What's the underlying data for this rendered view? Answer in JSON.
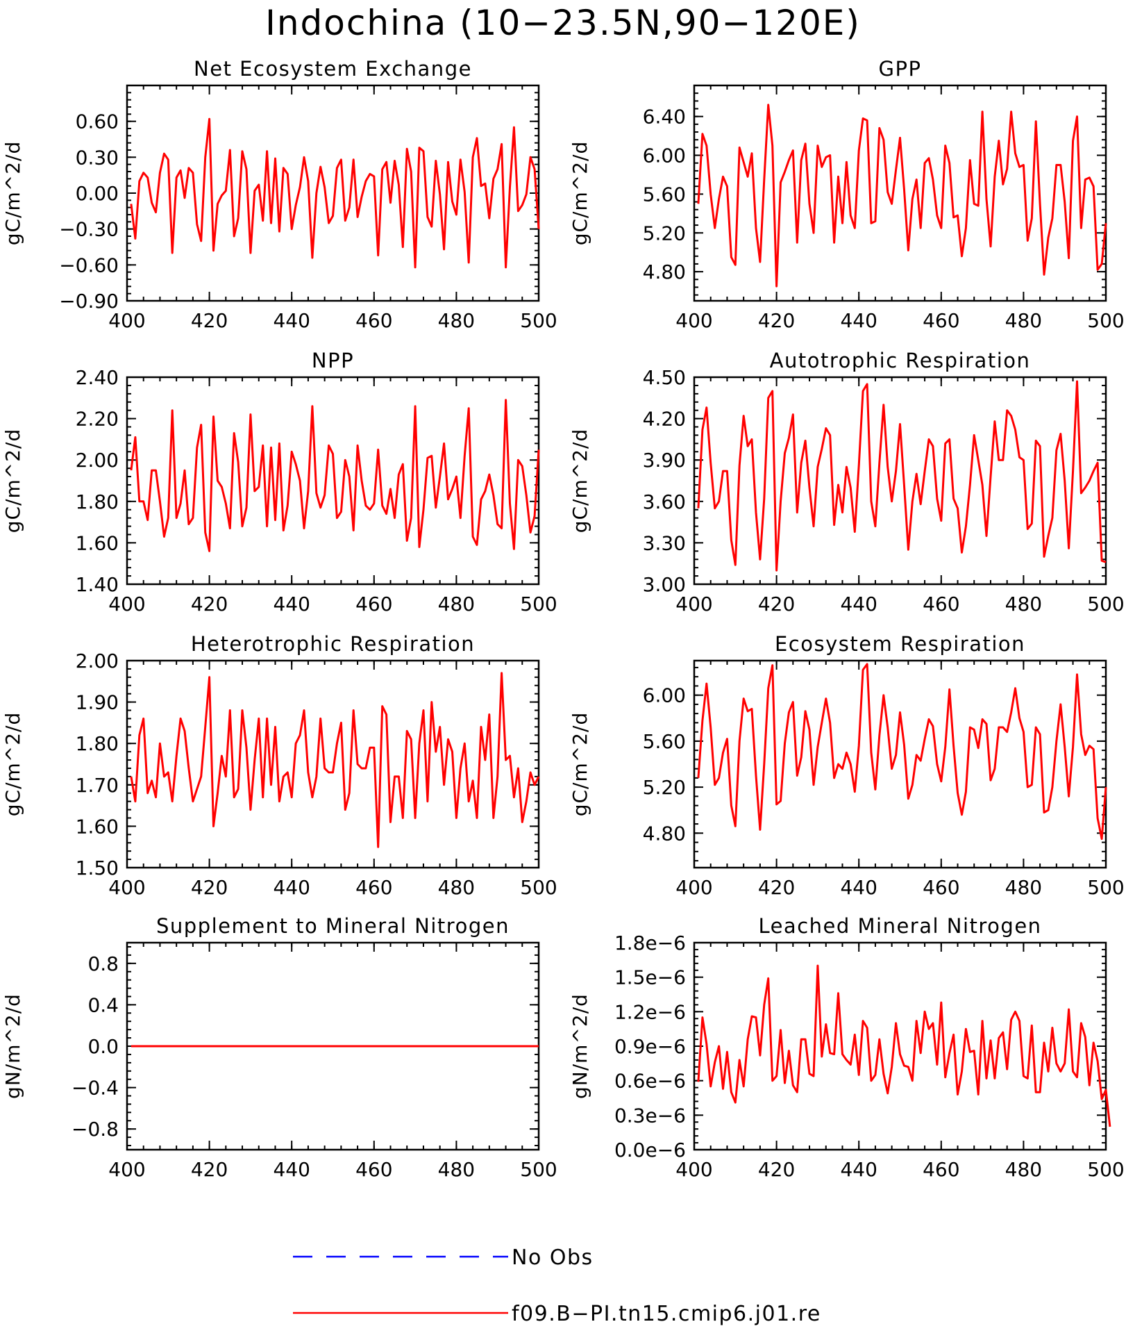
{
  "figure_title": "Indochina (10−23.5N,90−120E)",
  "legend": [
    {
      "label": "No Obs",
      "color": "#0000ff",
      "dash": true
    },
    {
      "label": "f09.B−PI.tn15.cmip6.j01.re",
      "color": "#ff0000",
      "dash": false
    }
  ],
  "series_color": "#ff0000",
  "chart_data": [
    {
      "type": "line",
      "title": "Net Ecosystem Exchange",
      "ylabel": "gC/m^2/d",
      "xlim": [
        400,
        500
      ],
      "xticks": [
        400,
        420,
        440,
        460,
        480,
        500
      ],
      "xtick_labels": [
        "400",
        "420",
        "440",
        "460",
        "480",
        "500"
      ],
      "ylim": [
        -0.9,
        0.9
      ],
      "yticks": [
        -0.9,
        -0.6,
        -0.3,
        0.0,
        0.3,
        0.6
      ],
      "ytick_labels": [
        "−0.90",
        "−0.60",
        "−0.30",
        "0.00",
        "0.30",
        "0.60"
      ],
      "series": [
        {
          "name": "f09.B−PI.tn15.cmip6.j01.re",
          "x_start": 401,
          "x_step": 1,
          "values": [
            -0.09,
            -0.38,
            0.1,
            0.17,
            0.13,
            -0.08,
            -0.16,
            0.17,
            0.33,
            0.28,
            -0.5,
            0.13,
            0.19,
            -0.04,
            0.21,
            0.17,
            -0.26,
            -0.4,
            0.3,
            0.62,
            -0.48,
            -0.09,
            -0.02,
            0.02,
            0.36,
            -0.36,
            -0.21,
            0.35,
            0.2,
            -0.5,
            0.02,
            0.07,
            -0.23,
            0.35,
            -0.25,
            0.29,
            -0.32,
            0.21,
            0.16,
            -0.3,
            -0.1,
            0.05,
            0.3,
            0.1,
            -0.54,
            0.0,
            0.22,
            0.05,
            -0.25,
            -0.19,
            0.21,
            0.28,
            -0.23,
            -0.12,
            0.28,
            -0.2,
            -0.03,
            0.1,
            0.16,
            0.14,
            -0.52,
            0.2,
            0.26,
            -0.08,
            0.27,
            0.07,
            -0.45,
            0.37,
            0.18,
            -0.62,
            0.38,
            0.35,
            -0.2,
            -0.28,
            0.27,
            -0.01,
            -0.47,
            0.26,
            -0.07,
            -0.18,
            0.28,
            0.01,
            -0.58,
            0.3,
            0.46,
            0.06,
            0.08,
            -0.21,
            0.12,
            0.2,
            0.41,
            -0.62,
            0.05,
            0.55,
            -0.15,
            -0.1,
            -0.01,
            0.3,
            0.2,
            -0.3
          ]
        }
      ]
    },
    {
      "type": "line",
      "title": "GPP",
      "ylabel": "gC/m^2/d",
      "xlim": [
        400,
        500
      ],
      "xticks": [
        400,
        420,
        440,
        460,
        480,
        500
      ],
      "xtick_labels": [
        "400",
        "420",
        "440",
        "460",
        "480",
        "500"
      ],
      "ylim": [
        4.5,
        6.72
      ],
      "yticks": [
        4.8,
        5.2,
        5.6,
        6.0,
        6.4
      ],
      "ytick_labels": [
        "4.80",
        "5.20",
        "5.60",
        "6.00",
        "6.40"
      ],
      "series": [
        {
          "name": "f09.B−PI.tn15.cmip6.j01.re",
          "x_start": 401,
          "x_step": 1,
          "values": [
            5.5,
            6.22,
            6.1,
            5.6,
            5.25,
            5.55,
            5.78,
            5.68,
            4.95,
            4.87,
            6.08,
            5.93,
            5.78,
            6.02,
            5.25,
            4.9,
            5.75,
            6.52,
            6.1,
            4.65,
            5.72,
            5.83,
            5.95,
            6.05,
            5.1,
            5.95,
            6.12,
            5.5,
            5.2,
            6.1,
            5.88,
            5.98,
            6.0,
            5.1,
            5.78,
            5.3,
            5.93,
            5.38,
            5.25,
            6.05,
            6.38,
            6.36,
            5.3,
            5.32,
            6.28,
            6.16,
            5.62,
            5.5,
            5.85,
            6.18,
            5.65,
            5.02,
            5.55,
            5.75,
            5.25,
            5.92,
            5.97,
            5.75,
            5.38,
            5.25,
            6.1,
            5.92,
            5.36,
            5.38,
            4.96,
            5.25,
            5.95,
            5.5,
            5.48,
            6.45,
            5.55,
            5.06,
            5.78,
            6.15,
            5.7,
            5.86,
            6.45,
            6.02,
            5.88,
            5.9,
            5.12,
            5.35,
            6.35,
            5.5,
            4.77,
            5.15,
            5.35,
            5.9,
            5.9,
            5.52,
            4.94,
            6.15,
            6.4,
            5.25,
            5.75,
            5.77,
            5.68,
            4.82,
            4.88,
            5.3
          ]
        }
      ]
    },
    {
      "type": "line",
      "title": "NPP",
      "ylabel": "gC/m^2/d",
      "xlim": [
        400,
        500
      ],
      "xticks": [
        400,
        420,
        440,
        460,
        480,
        500
      ],
      "xtick_labels": [
        "400",
        "420",
        "440",
        "460",
        "480",
        "500"
      ],
      "ylim": [
        1.4,
        2.4
      ],
      "yticks": [
        1.4,
        1.6,
        1.8,
        2.0,
        2.2,
        2.4
      ],
      "ytick_labels": [
        "1.40",
        "1.60",
        "1.80",
        "2.00",
        "2.20",
        "2.40"
      ],
      "series": [
        {
          "name": "f09.B−PI.tn15.cmip6.j01.re",
          "x_start": 401,
          "x_step": 1,
          "values": [
            1.95,
            2.11,
            1.8,
            1.8,
            1.71,
            1.95,
            1.95,
            1.8,
            1.63,
            1.72,
            2.24,
            1.72,
            1.79,
            1.95,
            1.69,
            1.72,
            2.06,
            2.17,
            1.65,
            1.56,
            2.21,
            1.9,
            1.87,
            1.79,
            1.67,
            2.13,
            1.99,
            1.68,
            1.77,
            2.22,
            1.85,
            1.87,
            2.07,
            1.68,
            2.06,
            1.71,
            2.08,
            1.66,
            1.78,
            2.04,
            1.98,
            1.9,
            1.67,
            1.85,
            2.26,
            1.84,
            1.77,
            1.83,
            2.07,
            2.03,
            1.72,
            1.75,
            2.0,
            1.92,
            1.66,
            2.07,
            1.9,
            1.78,
            1.76,
            1.79,
            2.05,
            1.78,
            1.74,
            1.86,
            1.72,
            1.93,
            1.98,
            1.61,
            1.72,
            2.26,
            1.58,
            1.76,
            2.01,
            2.02,
            1.77,
            1.92,
            2.08,
            1.81,
            1.86,
            1.92,
            1.72,
            2.02,
            2.25,
            1.63,
            1.59,
            1.81,
            1.85,
            1.93,
            1.83,
            1.69,
            1.67,
            2.29,
            1.79,
            1.57,
            2.0,
            1.97,
            1.83,
            1.65,
            1.73,
            2.05
          ]
        }
      ]
    },
    {
      "type": "line",
      "title": "Autotrophic Respiration",
      "ylabel": "gC/m^2/d",
      "xlim": [
        400,
        500
      ],
      "xticks": [
        400,
        420,
        440,
        460,
        480,
        500
      ],
      "xtick_labels": [
        "400",
        "420",
        "440",
        "460",
        "480",
        "500"
      ],
      "ylim": [
        3.0,
        4.5
      ],
      "yticks": [
        3.0,
        3.3,
        3.6,
        3.9,
        4.2,
        4.5
      ],
      "ytick_labels": [
        "3.00",
        "3.30",
        "3.60",
        "3.90",
        "4.20",
        "4.50"
      ],
      "series": [
        {
          "name": "f09.B−PI.tn15.cmip6.j01.re",
          "x_start": 401,
          "x_step": 1,
          "values": [
            3.55,
            4.12,
            4.28,
            3.88,
            3.55,
            3.6,
            3.82,
            3.82,
            3.32,
            3.14,
            3.86,
            4.22,
            4.0,
            4.05,
            3.52,
            3.18,
            3.62,
            4.35,
            4.4,
            3.1,
            3.6,
            3.95,
            4.06,
            4.23,
            3.52,
            3.88,
            4.04,
            3.7,
            3.42,
            3.85,
            3.98,
            4.13,
            4.08,
            3.43,
            3.72,
            3.52,
            3.85,
            3.7,
            3.38,
            3.86,
            4.4,
            4.45,
            3.6,
            3.42,
            3.88,
            4.3,
            3.85,
            3.6,
            3.82,
            4.16,
            3.72,
            3.25,
            3.6,
            3.8,
            3.58,
            3.82,
            4.05,
            4.0,
            3.62,
            3.46,
            4.02,
            4.05,
            3.62,
            3.55,
            3.23,
            3.42,
            3.72,
            4.08,
            3.9,
            3.72,
            3.35,
            3.78,
            4.18,
            3.9,
            3.9,
            4.26,
            4.22,
            4.12,
            3.92,
            3.9,
            3.4,
            3.44,
            4.04,
            4.0,
            3.2,
            3.35,
            3.48,
            3.97,
            4.09,
            3.75,
            3.26,
            3.82,
            4.47,
            3.66,
            3.7,
            3.75,
            3.82,
            3.88,
            3.17,
            3.16
          ]
        }
      ]
    },
    {
      "type": "line",
      "title": "Heterotrophic Respiration",
      "ylabel": "gC/m^2/d",
      "xlim": [
        400,
        500
      ],
      "xticks": [
        400,
        420,
        440,
        460,
        480,
        500
      ],
      "xtick_labels": [
        "400",
        "420",
        "440",
        "460",
        "480",
        "500"
      ],
      "ylim": [
        1.5,
        2.0
      ],
      "yticks": [
        1.5,
        1.6,
        1.7,
        1.8,
        1.9,
        2.0
      ],
      "ytick_labels": [
        "1.50",
        "1.60",
        "1.70",
        "1.80",
        "1.90",
        "2.00"
      ],
      "series": [
        {
          "name": "f09.B−PI.tn15.cmip6.j01.re",
          "x_start": 401,
          "x_step": 1,
          "values": [
            1.72,
            1.66,
            1.82,
            1.86,
            1.68,
            1.71,
            1.67,
            1.8,
            1.72,
            1.73,
            1.66,
            1.77,
            1.86,
            1.83,
            1.74,
            1.66,
            1.69,
            1.72,
            1.84,
            1.96,
            1.6,
            1.68,
            1.77,
            1.72,
            1.88,
            1.67,
            1.69,
            1.88,
            1.79,
            1.64,
            1.76,
            1.86,
            1.67,
            1.86,
            1.7,
            1.84,
            1.66,
            1.72,
            1.73,
            1.67,
            1.8,
            1.82,
            1.88,
            1.73,
            1.67,
            1.72,
            1.86,
            1.74,
            1.73,
            1.73,
            1.8,
            1.85,
            1.64,
            1.68,
            1.88,
            1.75,
            1.74,
            1.74,
            1.79,
            1.79,
            1.55,
            1.89,
            1.87,
            1.61,
            1.72,
            1.72,
            1.62,
            1.83,
            1.81,
            1.62,
            1.8,
            1.88,
            1.66,
            1.9,
            1.78,
            1.84,
            1.7,
            1.81,
            1.78,
            1.62,
            1.74,
            1.8,
            1.66,
            1.71,
            1.62,
            1.84,
            1.76,
            1.87,
            1.62,
            1.72,
            1.97,
            1.76,
            1.77,
            1.67,
            1.74,
            1.61,
            1.66,
            1.73,
            1.7,
            1.72
          ]
        }
      ]
    },
    {
      "type": "line",
      "title": "Ecosystem Respiration",
      "ylabel": "gC/m^2/d",
      "xlim": [
        400,
        500
      ],
      "xticks": [
        400,
        420,
        440,
        460,
        480,
        500
      ],
      "xtick_labels": [
        "400",
        "420",
        "440",
        "460",
        "480",
        "500"
      ],
      "ylim": [
        4.5,
        6.3
      ],
      "yticks": [
        4.8,
        5.2,
        5.6,
        6.0
      ],
      "ytick_labels": [
        "4.80",
        "5.20",
        "5.60",
        "6.00"
      ],
      "series": [
        {
          "name": "f09.B−PI.tn15.cmip6.j01.re",
          "x_start": 401,
          "x_step": 1,
          "values": [
            5.28,
            5.78,
            6.1,
            5.72,
            5.22,
            5.28,
            5.5,
            5.62,
            5.04,
            4.86,
            5.6,
            5.97,
            5.86,
            5.88,
            5.3,
            4.83,
            5.4,
            6.06,
            6.26,
            5.05,
            5.08,
            5.58,
            5.85,
            5.94,
            5.3,
            5.46,
            5.86,
            5.7,
            5.22,
            5.55,
            5.76,
            5.97,
            5.76,
            5.28,
            5.4,
            5.36,
            5.5,
            5.4,
            5.16,
            5.56,
            6.22,
            6.27,
            5.5,
            5.18,
            5.65,
            6.0,
            5.72,
            5.36,
            5.48,
            5.85,
            5.57,
            5.1,
            5.22,
            5.48,
            5.43,
            5.62,
            5.79,
            5.73,
            5.4,
            5.25,
            5.55,
            6.05,
            5.56,
            5.15,
            4.96,
            5.16,
            5.72,
            5.7,
            5.54,
            5.79,
            5.75,
            5.26,
            5.36,
            5.72,
            5.72,
            5.68,
            5.85,
            6.06,
            5.8,
            5.68,
            5.2,
            5.22,
            5.72,
            5.66,
            4.98,
            5.0,
            5.2,
            5.6,
            5.92,
            5.55,
            5.12,
            5.55,
            6.18,
            5.66,
            5.48,
            5.56,
            5.53,
            4.93,
            4.75,
            5.2
          ]
        }
      ]
    },
    {
      "type": "line",
      "title": "Supplement to Mineral Nitrogen",
      "ylabel": "gN/m^2/d",
      "xlim": [
        400,
        500
      ],
      "xticks": [
        400,
        420,
        440,
        460,
        480,
        500
      ],
      "xtick_labels": [
        "400",
        "420",
        "440",
        "460",
        "480",
        "500"
      ],
      "ylim": [
        -1.0,
        1.0
      ],
      "yticks": [
        -0.8,
        -0.4,
        0.0,
        0.4,
        0.8
      ],
      "ytick_labels": [
        "−0.8",
        "−0.4",
        "0.0",
        "0.4",
        "0.8"
      ],
      "series": [
        {
          "name": "f09.B−PI.tn15.cmip6.j01.re",
          "x_start": 401,
          "x_step": 99,
          "values": [
            0.0,
            0.0
          ]
        }
      ]
    },
    {
      "type": "line",
      "title": "Leached Mineral Nitrogen",
      "ylabel": "gN/m^2/d",
      "xlim": [
        400,
        500
      ],
      "xticks": [
        400,
        420,
        440,
        460,
        480,
        500
      ],
      "xtick_labels": [
        "400",
        "420",
        "440",
        "460",
        "480",
        "500"
      ],
      "ylim": [
        0.0,
        1.8e-06
      ],
      "yticks": [
        0.0,
        3e-07,
        6e-07,
        9e-07,
        1.2e-06,
        1.5e-06,
        1.8e-06
      ],
      "ytick_labels": [
        "0.0e−6",
        "0.3e−6",
        "0.6e−6",
        "0.9e−6",
        "1.2e−6",
        "1.5e−6",
        "1.8e−6"
      ],
      "series": [
        {
          "name": "f09.B−PI.tn15.cmip6.j01.re",
          "x_start": 401,
          "x_step": 1,
          "values": [
            5.9e-07,
            1.15e-06,
            9.2e-07,
            5.5e-07,
            7.6e-07,
            9e-07,
            5.3e-07,
            8.5e-07,
            5e-07,
            4.1e-07,
            7.8e-07,
            5.5e-07,
            9.6e-07,
            1.16e-06,
            1.15e-06,
            8.2e-07,
            1.26e-06,
            1.49e-06,
            6e-07,
            6.4e-07,
            1.04e-06,
            5.8e-07,
            8.6e-07,
            5.6e-07,
            5e-07,
            9.6e-07,
            9.6e-07,
            6.6e-07,
            6.4e-07,
            1.6e-06,
            8.1e-07,
            1.09e-06,
            8.4e-07,
            8.3e-07,
            1.36e-06,
            8.3e-07,
            7.8e-07,
            7.4e-07,
            1e-06,
            6.5e-07,
            1.12e-06,
            1.06e-06,
            6e-07,
            6.5e-07,
            9.6e-07,
            6.6e-07,
            4.9e-07,
            7.2e-07,
            1.1e-06,
            8.3e-07,
            7.3e-07,
            7.2e-07,
            6e-07,
            1.12e-06,
            8.4e-07,
            1.2e-06,
            1.05e-06,
            1.1e-06,
            7.4e-07,
            1.28e-06,
            6.3e-07,
            8.4e-07,
            1e-06,
            4.8e-07,
            6.8e-07,
            1.05e-06,
            8.5e-07,
            8.6e-07,
            4.8e-07,
            1.12e-06,
            6.2e-07,
            9.5e-07,
            6.2e-07,
            9.7e-07,
            1.02e-06,
            7e-07,
            1.13e-06,
            1.2e-06,
            1.12e-06,
            6.4e-07,
            6.2e-07,
            1.08e-06,
            5e-07,
            5e-07,
            9.3e-07,
            6.8e-07,
            1.06e-06,
            7.5e-07,
            6.8e-07,
            7.5e-07,
            1.22e-06,
            6.8e-07,
            6.3e-07,
            1.1e-06,
            9.8e-07,
            5.6e-07,
            9.3e-07,
            7.7e-07,
            4.4e-07,
            5.2e-07,
            2e-07
          ]
        }
      ]
    }
  ]
}
